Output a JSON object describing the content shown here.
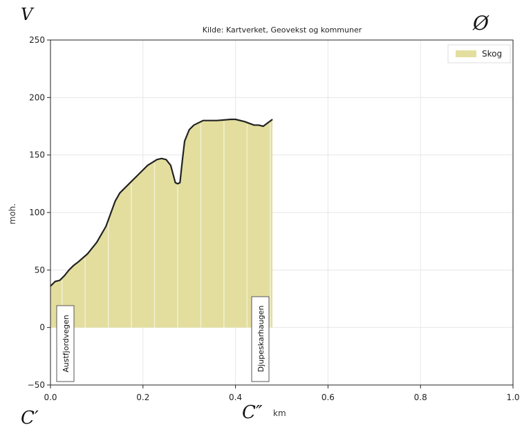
{
  "chart_data": {
    "type": "area",
    "title": "Kilde: Kartverket, Geovekst og kommuner",
    "xlabel": "km",
    "ylabel": "moh.",
    "xlim": [
      0.0,
      1.0
    ],
    "ylim": [
      -50,
      250
    ],
    "xticks": [
      "0.0",
      "0.2",
      "0.4",
      "0.6",
      "0.8",
      "1.0"
    ],
    "yticks": [
      "−50",
      "0",
      "50",
      "100",
      "150",
      "200",
      "250"
    ],
    "grid": true,
    "legend_position": "top-right",
    "colors": {
      "fill": "#e3de9e",
      "profile_line": "#222222",
      "grid": "#e6e6e6"
    },
    "series": [
      {
        "name": "Skog",
        "x": [
          0.0,
          0.01,
          0.02,
          0.03,
          0.04,
          0.05,
          0.06,
          0.08,
          0.1,
          0.12,
          0.14,
          0.15,
          0.17,
          0.19,
          0.21,
          0.23,
          0.24,
          0.25,
          0.26,
          0.27,
          0.275,
          0.28,
          0.285,
          0.29,
          0.3,
          0.31,
          0.33,
          0.36,
          0.39,
          0.4,
          0.42,
          0.44,
          0.45,
          0.46,
          0.47,
          0.48
        ],
        "values": [
          36,
          40,
          41,
          45,
          50,
          54,
          57,
          64,
          74,
          88,
          110,
          117,
          125,
          133,
          141,
          146,
          147,
          146,
          141,
          126,
          125,
          126,
          145,
          162,
          172,
          176,
          180,
          180,
          181,
          181,
          179,
          176,
          176,
          175,
          178,
          181
        ]
      }
    ],
    "annotations": [
      {
        "text": "Austfjordvegen",
        "x": 0.0
      },
      {
        "text": "Djupeskarhaugen",
        "x": 0.48
      }
    ],
    "handwritten": [
      "V",
      "Ø",
      "C′",
      "C″"
    ]
  }
}
